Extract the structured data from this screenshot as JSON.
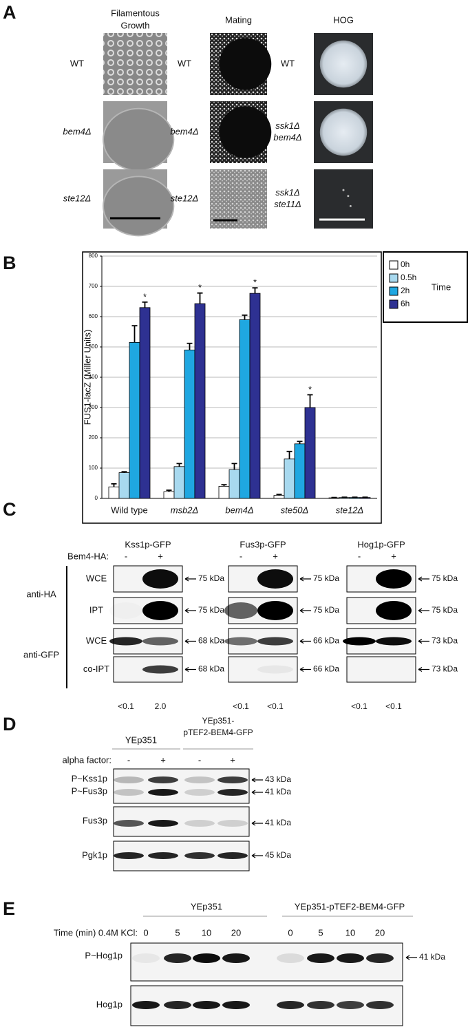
{
  "panel_a": {
    "label": "A",
    "columns": [
      {
        "title": [
          "Filamentous",
          "Growth"
        ],
        "rows": [
          [
            "WT"
          ],
          [
            "bem4Δ"
          ],
          [
            "ste12Δ"
          ]
        ]
      },
      {
        "title": [
          "Mating"
        ],
        "rows": [
          [
            "WT"
          ],
          [
            "bem4Δ"
          ],
          [
            "ste12Δ"
          ]
        ]
      },
      {
        "title": [
          "HOG"
        ],
        "rows": [
          [
            "WT"
          ],
          [
            "ssk1Δ",
            "bem4Δ"
          ],
          [
            "ssk1Δ",
            "ste11Δ"
          ]
        ]
      }
    ]
  },
  "chart_data": {
    "type": "bar",
    "panel_label": "B",
    "ylabel": "FUS1-lacZ (Miller Units)",
    "categories": [
      "Wild type",
      "msb2Δ",
      "bem4Δ",
      "ste50Δ",
      "ste12Δ"
    ],
    "series": [
      {
        "name": "0h",
        "color": "#ffffff",
        "values": [
          38,
          22,
          40,
          10,
          2
        ],
        "errors": [
          10,
          5,
          5,
          3,
          1
        ]
      },
      {
        "name": "0.5h",
        "color": "#a8d9ef",
        "values": [
          85,
          105,
          95,
          130,
          3
        ],
        "errors": [
          3,
          10,
          20,
          25,
          1
        ]
      },
      {
        "name": "2h",
        "color": "#1fa7e1",
        "values": [
          515,
          490,
          590,
          180,
          3
        ],
        "errors": [
          55,
          22,
          15,
          8,
          1
        ]
      },
      {
        "name": "6h",
        "color": "#2e3192",
        "values": [
          630,
          643,
          677,
          300,
          3
        ],
        "errors": [
          18,
          35,
          18,
          42,
          1
        ],
        "annotations": [
          "*",
          "*",
          "*",
          "*",
          null
        ]
      }
    ],
    "legend_title": "Time",
    "legend": "top right",
    "ylim": [
      0,
      800
    ],
    "yticks": [
      0,
      100,
      200,
      300,
      400,
      500,
      600,
      700,
      800
    ],
    "grid": true
  },
  "panel_c": {
    "label": "C",
    "row_prefix": "Bem4-HA:",
    "lanes": [
      "-",
      "+"
    ],
    "groups": [
      {
        "name": "anti-HA",
        "rows": [
          "WCE",
          "IPT"
        ]
      },
      {
        "name": "anti-GFP",
        "rows": [
          "WCE",
          "co-IPT"
        ]
      }
    ],
    "blots": [
      {
        "title": "Kss1p-GFP",
        "sizes": [
          "75 kDa",
          "75 kDa",
          "68 kDa",
          "68 kDa"
        ],
        "quant": [
          "<0.1",
          "2.0"
        ]
      },
      {
        "title": "Fus3p-GFP",
        "sizes": [
          "75 kDa",
          "75 kDa",
          "66 kDa",
          "66 kDa"
        ],
        "quant": [
          "<0.1",
          "<0.1"
        ]
      },
      {
        "title": "Hog1p-GFP",
        "sizes": [
          "75 kDa",
          "75 kDa",
          "73 kDa",
          "73 kDa"
        ],
        "quant": [
          "<0.1",
          "<0.1"
        ]
      }
    ]
  },
  "panel_d": {
    "label": "D",
    "strains": [
      [
        "YEp351"
      ],
      [
        "YEp351-",
        "pTEF2-BEM4-GFP"
      ]
    ],
    "row_prefix": "alpha factor:",
    "lanes": [
      "-",
      "+",
      "-",
      "+"
    ],
    "rows": [
      "P~Kss1p",
      "P~Fus3p",
      "Fus3p",
      "Pgk1p"
    ],
    "sizes": [
      "43 kDa",
      "41 kDa",
      "41 kDa",
      "45 kDa"
    ]
  },
  "panel_e": {
    "label": "E",
    "strains": [
      "YEp351",
      "YEp351-pTEF2-BEM4-GFP"
    ],
    "row_prefix": "Time (min) 0.4M KCl:",
    "lanes": [
      "0",
      "5",
      "10",
      "20",
      "0",
      "5",
      "10",
      "20"
    ],
    "rows": [
      "P~Hog1p",
      "Hog1p"
    ],
    "sizes": [
      "41 kDa"
    ]
  }
}
